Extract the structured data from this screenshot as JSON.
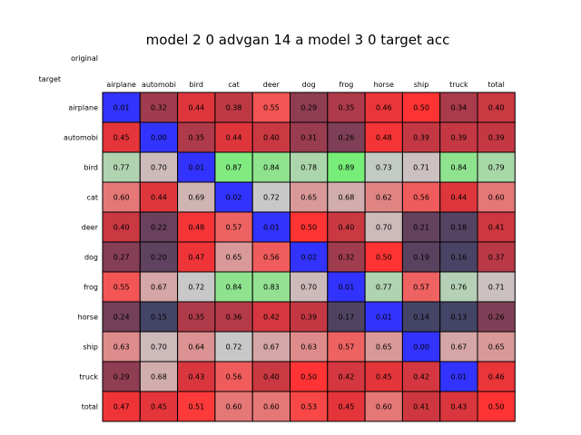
{
  "chart_data": {
    "type": "heatmap",
    "title": "model 2 0 advgan 14 a model 3 0 target acc",
    "row_axis_label": "original",
    "col_axis_label": "target",
    "columns": [
      "airplane",
      "automobi",
      "bird",
      "cat",
      "deer",
      "dog",
      "frog",
      "horse",
      "ship",
      "truck",
      "total"
    ],
    "rows": [
      "airplane",
      "automobi",
      "bird",
      "cat",
      "deer",
      "dog",
      "frog",
      "horse",
      "ship",
      "truck",
      "total"
    ],
    "values": [
      [
        "0.01",
        "0.32",
        "0.44",
        "0.38",
        "0.55",
        "0.29",
        "0.35",
        "0.46",
        "0.50",
        "0.34",
        "0.40"
      ],
      [
        "0.45",
        "0.00",
        "0.35",
        "0.44",
        "0.40",
        "0.31",
        "0.26",
        "0.48",
        "0.39",
        "0.39",
        "0.39"
      ],
      [
        "0.77",
        "0.70",
        "0.01",
        "0.87",
        "0.84",
        "0.78",
        "0.89",
        "0.73",
        "0.71",
        "0.84",
        "0.79"
      ],
      [
        "0.60",
        "0.44",
        "0.69",
        "0.02",
        "0.72",
        "0.65",
        "0.68",
        "0.62",
        "0.56",
        "0.44",
        "0.60"
      ],
      [
        "0.40",
        "0.22",
        "0.48",
        "0.57",
        "0.01",
        "0.50",
        "0.40",
        "0.70",
        "0.21",
        "0.18",
        "0.41"
      ],
      [
        "0.27",
        "0.20",
        "0.47",
        "0.65",
        "0.56",
        "0.02",
        "0.32",
        "0.50",
        "0.19",
        "0.16",
        "0.37"
      ],
      [
        "0.55",
        "0.67",
        "0.72",
        "0.84",
        "0.83",
        "0.70",
        "0.01",
        "0.77",
        "0.57",
        "0.76",
        "0.71"
      ],
      [
        "0.24",
        "0.15",
        "0.35",
        "0.36",
        "0.42",
        "0.39",
        "0.17",
        "0.01",
        "0.14",
        "0.13",
        "0.26"
      ],
      [
        "0.63",
        "0.70",
        "0.64",
        "0.72",
        "0.67",
        "0.63",
        "0.57",
        "0.65",
        "0.00",
        "0.67",
        "0.65"
      ],
      [
        "0.29",
        "0.68",
        "0.43",
        "0.56",
        "0.40",
        "0.50",
        "0.42",
        "0.45",
        "0.42",
        "0.01",
        "0.46"
      ],
      [
        "0.47",
        "0.45",
        "0.51",
        "0.60",
        "0.60",
        "0.53",
        "0.45",
        "0.60",
        "0.41",
        "0.43",
        "0.50"
      ]
    ],
    "colors": {
      "diagonal": "#3333ff",
      "low": "#444466",
      "mid": "#ff3333",
      "high": "#77ee77",
      "border": "#000000"
    }
  }
}
